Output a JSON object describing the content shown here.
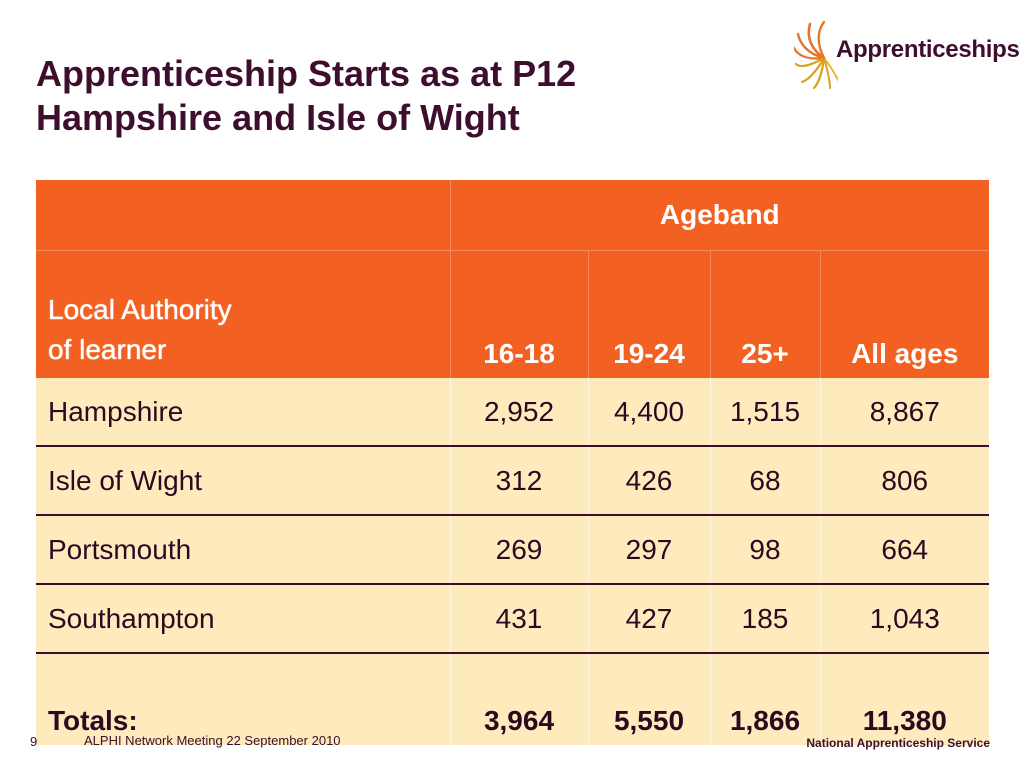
{
  "title": {
    "line1": "Apprenticeship Starts as at P12",
    "line2": "Hampshire and Isle of Wight"
  },
  "logo": {
    "text": "Apprenticeships",
    "icon": "sunburst-logo-icon",
    "colors": [
      "#e8732c",
      "#d9a21b",
      "#3d0e2e"
    ]
  },
  "table": {
    "group_header": "Ageband",
    "row_header": [
      "Local Authority",
      "of learner"
    ],
    "columns": [
      "16-18",
      "19-24",
      "25+",
      "All ages"
    ],
    "rows": [
      {
        "name": "Hampshire",
        "values": [
          "2,952",
          "4,400",
          "1,515",
          "8,867"
        ]
      },
      {
        "name": "Isle of Wight",
        "values": [
          "312",
          "426",
          "68",
          "806"
        ]
      },
      {
        "name": "Portsmouth",
        "values": [
          "269",
          "297",
          "98",
          "664"
        ]
      },
      {
        "name": "Southampton",
        "values": [
          "431",
          "427",
          "185",
          "1,043"
        ]
      }
    ],
    "totals": {
      "label": "Totals:",
      "values": [
        "3,964",
        "5,550",
        "1,866",
        "11,380"
      ]
    }
  },
  "footer": {
    "page_number": "9",
    "meeting": "ALPHI Network Meeting 22 September 2010",
    "organisation": "National Apprenticeship Service"
  },
  "colors": {
    "header_bg": "#f26122",
    "body_bg": "#fdebbe",
    "title_text": "#3d0e2e"
  }
}
